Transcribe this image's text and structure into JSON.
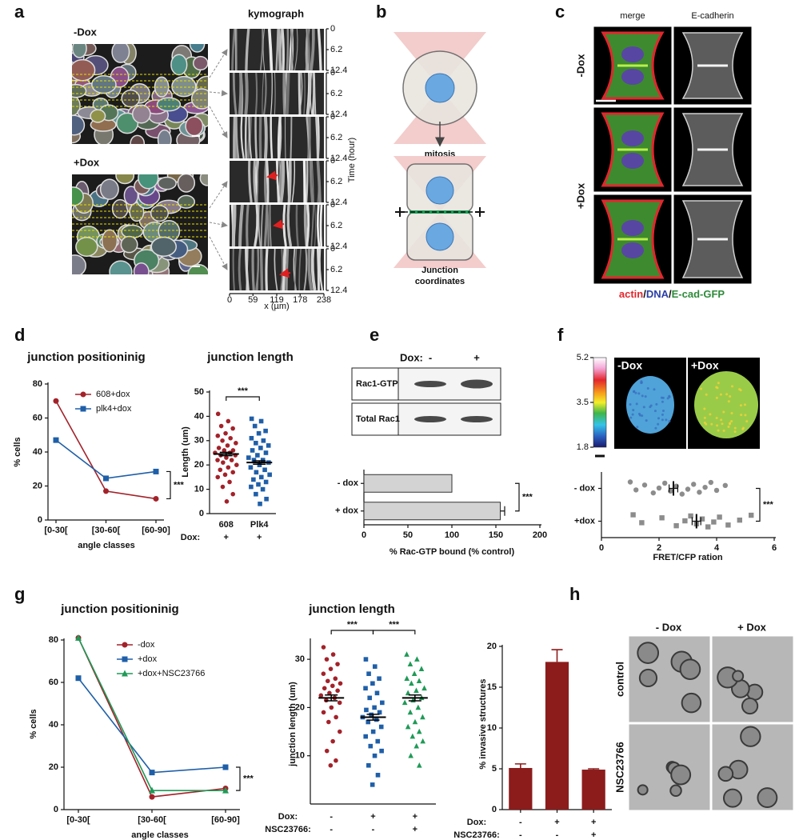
{
  "panels": {
    "a": {
      "letter": "a",
      "images": [
        "-Dox",
        "+Dox"
      ],
      "kymograph": {
        "title": "kymograph",
        "time_ticks": [
          0,
          6.2,
          12.4
        ],
        "time_label": "Time (hour)",
        "x_ticks": [
          0,
          59,
          119,
          178,
          238
        ],
        "x_label": "x (µm)"
      }
    },
    "b": {
      "letter": "b",
      "step": "mitosis",
      "result": [
        "Junction",
        "coordinates"
      ]
    },
    "c": {
      "letter": "c",
      "columns": [
        "merge",
        "E-cadherin"
      ],
      "rows": [
        "-Dox",
        "+Dox"
      ],
      "legend": [
        {
          "text": "actin",
          "color": "#e3262d"
        },
        {
          "text": "/",
          "color": "#111111"
        },
        {
          "text": "DNA",
          "color": "#2b3fa8"
        },
        {
          "text": "/",
          "color": "#111111"
        },
        {
          "text": "E-cad-GFP",
          "color": "#2e8b3a"
        }
      ]
    },
    "d": {
      "letter": "d"
    },
    "e": {
      "letter": "e",
      "blot": {
        "dox_label": "Dox:",
        "lanes": [
          "-",
          "+"
        ],
        "bands": [
          "Rac1-GTP",
          "Total Rac1"
        ]
      }
    },
    "f": {
      "letter": "f",
      "colorbar_ticks": [
        5.2,
        3.5,
        1.8
      ],
      "images": [
        "-Dox",
        "+Dox"
      ]
    },
    "g": {
      "letter": "g"
    },
    "h": {
      "letter": "h",
      "columns": [
        "- Dox",
        "+ Dox"
      ],
      "rows": [
        "control",
        "NSC23766"
      ]
    }
  },
  "chart_data": [
    {
      "type": "line",
      "title": "junction positioninig",
      "categories": [
        "[0-30[",
        "[30-60[",
        "[60-90]"
      ],
      "series": [
        {
          "name": "608+dox",
          "color": "#a3222a",
          "marker": "circle",
          "values": [
            70,
            17,
            12.5
          ]
        },
        {
          "name": "plk4+dox",
          "color": "#1f5fa8",
          "marker": "square",
          "values": [
            47,
            24.5,
            28.5
          ]
        }
      ],
      "ylim": [
        0,
        80
      ],
      "yticks": [
        0,
        20,
        40,
        60,
        80
      ],
      "x_label": "angle classes",
      "y_label": "% cells",
      "significance": [
        "***"
      ]
    },
    {
      "type": "dots",
      "title": "junction length",
      "categories": [
        "608",
        "Plk4"
      ],
      "colors": [
        "#a3222a",
        "#1f5fa8"
      ],
      "markers": [
        "circle",
        "square"
      ],
      "values": [
        24.5,
        21
      ],
      "errors": [
        0.7,
        0.7
      ],
      "points": [
        [
          41,
          38,
          36,
          35,
          33,
          32,
          31,
          30,
          29,
          28,
          27,
          26,
          26,
          25,
          25,
          24,
          24,
          23,
          22,
          22,
          21,
          20,
          19,
          18,
          17,
          16,
          15,
          13,
          11,
          8,
          5
        ],
        [
          39,
          38,
          36,
          34,
          33,
          31,
          30,
          29,
          28,
          27,
          26,
          25,
          24,
          23,
          22,
          22,
          21,
          20,
          19,
          18,
          17,
          16,
          15,
          14,
          13,
          12,
          11,
          10,
          8,
          6,
          4
        ]
      ],
      "ylim": [
        0,
        50
      ],
      "yticks": [
        0,
        10,
        20,
        30,
        40,
        50
      ],
      "y_label": "Length (um)",
      "conditions": [
        {
          "label": "Dox:",
          "values": [
            "+",
            "+"
          ]
        }
      ],
      "significance": [
        "***"
      ]
    },
    {
      "type": "hbar",
      "categories": [
        "- dox",
        "+ dox"
      ],
      "values": [
        100,
        155
      ],
      "errors": [
        0,
        5
      ],
      "color": "#d3d3d3",
      "xlim": [
        0,
        200
      ],
      "xticks": [
        0,
        50,
        100,
        150,
        200
      ],
      "x_label": "% Rac-GTP bound (% control)",
      "significance": [
        "***"
      ]
    },
    {
      "type": "hdots",
      "categories": [
        "- dox",
        "+dox"
      ],
      "color": "#8c8c8c",
      "markers": [
        "circle",
        "square"
      ],
      "values": [
        2.5,
        3.3
      ],
      "errors": [
        0.15,
        0.15
      ],
      "points": [
        [
          1,
          1.2,
          1.5,
          1.8,
          2,
          2.2,
          2.4,
          2.6,
          2.8,
          3,
          3.2,
          3.4,
          3.6,
          3.8,
          4,
          4.3
        ],
        [
          1.1,
          1.4,
          2.1,
          2.6,
          2.9,
          3.1,
          3.3,
          3.5,
          3.7,
          3.9,
          4.1,
          4.4,
          4.8,
          5.2
        ]
      ],
      "xlim": [
        0,
        6
      ],
      "xticks": [
        0,
        2,
        4,
        6
      ],
      "x_label": "FRET/CFP ration",
      "significance": [
        "***"
      ]
    },
    {
      "type": "line",
      "title": "junction positioninig",
      "categories": [
        "[0-30[",
        "[30-60[",
        "[60-90]"
      ],
      "series": [
        {
          "name": "-dox",
          "color": "#a3222a",
          "marker": "circle",
          "values": [
            81,
            6,
            10
          ]
        },
        {
          "name": "+dox",
          "color": "#1f5fa8",
          "marker": "square",
          "values": [
            62,
            17.5,
            20
          ]
        },
        {
          "name": "+dox+NSC23766",
          "color": "#1f9a57",
          "marker": "triangle",
          "values": [
            81,
            9,
            9
          ]
        }
      ],
      "ylim": [
        0,
        80
      ],
      "yticks": [
        0,
        20,
        40,
        60,
        80
      ],
      "x_label": "angle classes",
      "y_label": "% cells",
      "significance": [
        "***"
      ]
    },
    {
      "type": "dots",
      "title": "junction length",
      "colors": [
        "#a3222a",
        "#1f5fa8",
        "#1f9a57"
      ],
      "markers": [
        "circle",
        "square",
        "triangle"
      ],
      "values": [
        22,
        18,
        22
      ],
      "errors": [
        0.6,
        0.6,
        0.6
      ],
      "points": [
        [
          32.5,
          31,
          30,
          29,
          28,
          27,
          26,
          25.5,
          25,
          24.5,
          24,
          23.5,
          23,
          22.5,
          22,
          21.5,
          21,
          20,
          19,
          18,
          17,
          15,
          13,
          11,
          9,
          8
        ],
        [
          30,
          28.5,
          27,
          26,
          25,
          24,
          23,
          22,
          21,
          20,
          19.5,
          19,
          18.5,
          18,
          17.5,
          17,
          16,
          15,
          14,
          13,
          12,
          11,
          10,
          8,
          6,
          4
        ],
        [
          31,
          30,
          29,
          28,
          27,
          26,
          25.5,
          25,
          24,
          23.5,
          23,
          22,
          21.5,
          21,
          20,
          19,
          18,
          17,
          16,
          15,
          14,
          13,
          12,
          10,
          8
        ]
      ],
      "ylim": [
        0,
        34
      ],
      "yticks": [
        10,
        20,
        30
      ],
      "y_label": "junction length (um)",
      "conditions": [
        {
          "label": "Dox:",
          "values": [
            "-",
            "+",
            "+"
          ]
        },
        {
          "label": "NSC23766:",
          "values": [
            "-",
            "-",
            "+"
          ]
        }
      ],
      "significance": [
        "***",
        "***"
      ]
    },
    {
      "type": "bar",
      "color": "#8c1c1c",
      "values": [
        5.1,
        18.1,
        4.9
      ],
      "errors": [
        0.5,
        1.5,
        0.1
      ],
      "ylim": [
        0,
        20
      ],
      "yticks": [
        0,
        5,
        10,
        15,
        20
      ],
      "y_label": "% invasive structures",
      "conditions": [
        {
          "label": "Dox:",
          "values": [
            "-",
            "+",
            "+"
          ]
        },
        {
          "label": "NSC23766:",
          "values": [
            "-",
            "-",
            "+"
          ]
        }
      ]
    }
  ]
}
